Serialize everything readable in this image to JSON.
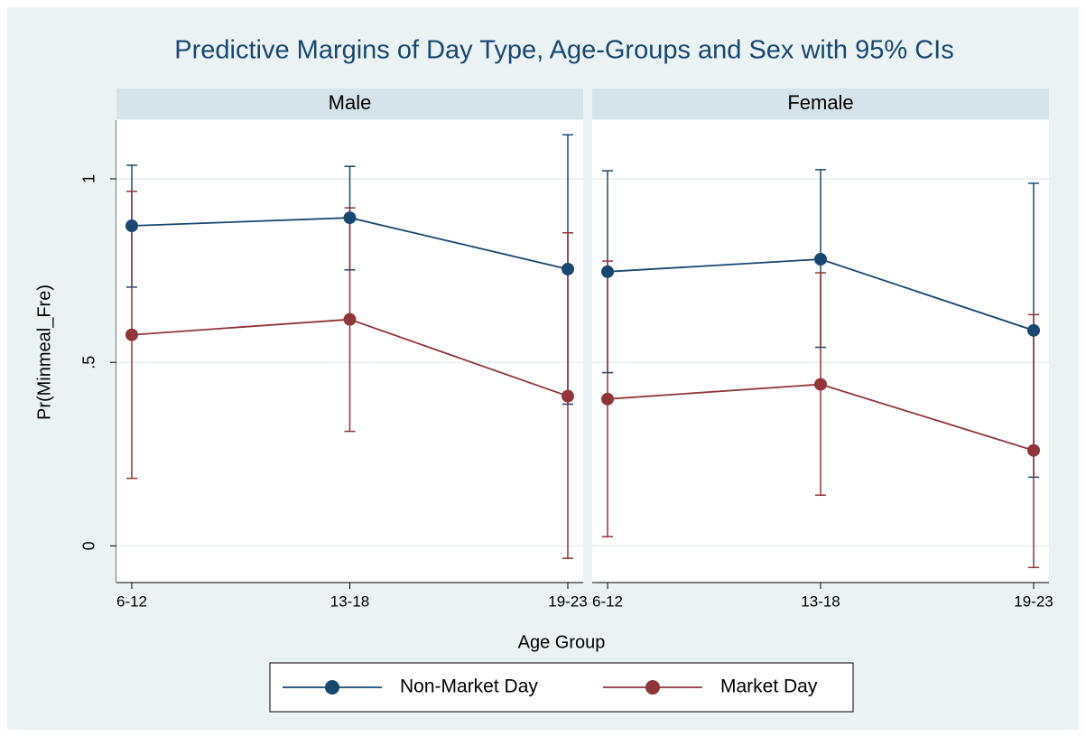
{
  "chart_data": {
    "type": "line",
    "title": "Predictive Margins of Day Type, Age-Groups and Sex with 95% CIs",
    "ylabel": "Pr(Minmeal_Fre)",
    "xlabel": "Age Group",
    "panels": [
      "Male",
      "Female"
    ],
    "categories": [
      "6-12",
      "13-18",
      "19-23"
    ],
    "ylim": [
      -0.1,
      1.16
    ],
    "yticks": [
      0,
      {
        "value": 0.5,
        "label": ".5"
      },
      1
    ],
    "grid": true,
    "series": [
      {
        "name": "Non-Market Day",
        "color": "#1a476f",
        "values": [
          [
            0.872,
            0.894,
            0.754
          ],
          [
            0.747,
            0.781,
            0.587
          ]
        ],
        "ci_low": [
          [
            0.705,
            0.752,
            0.386
          ],
          [
            0.472,
            0.541,
            0.187
          ]
        ],
        "ci_high": [
          [
            1.037,
            1.034,
            1.12
          ],
          [
            1.022,
            1.025,
            0.988
          ]
        ]
      },
      {
        "name": "Market Day",
        "color": "#90353b",
        "values": [
          [
            0.575,
            0.617,
            0.408
          ],
          [
            0.4,
            0.44,
            0.26
          ]
        ],
        "ci_low": [
          [
            0.184,
            0.312,
            -0.034
          ],
          [
            0.025,
            0.138,
            -0.059
          ]
        ],
        "ci_high": [
          [
            0.966,
            0.921,
            0.853
          ],
          [
            0.776,
            0.744,
            0.63
          ]
        ]
      }
    ]
  }
}
